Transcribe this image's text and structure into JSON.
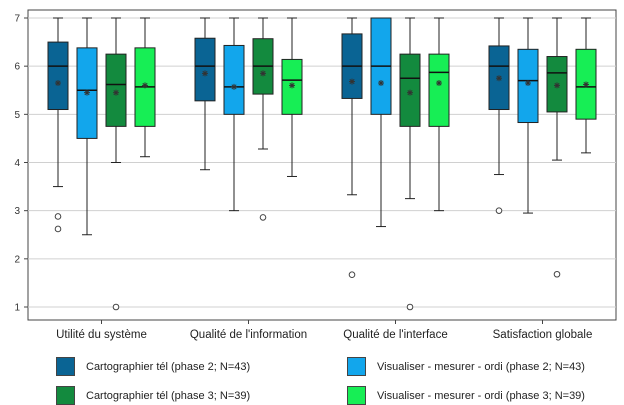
{
  "chart_data": {
    "type": "box",
    "categories": [
      "Utilité du système",
      "Qualité de l'information",
      "Qualité de l'interface",
      "Satisfaction globale"
    ],
    "y_ticks": [
      1,
      2,
      3,
      4,
      5,
      6,
      7
    ],
    "ylim": [
      0.8,
      7.1
    ],
    "grid": true,
    "legend_placement": "bottom",
    "series": [
      {
        "name": "Cartographier tél (phase 2; N=43)",
        "color": "#0a6494",
        "boxes": [
          {
            "min": 3.5,
            "q1": 5.1,
            "median": 6.0,
            "q3": 6.5,
            "max": 7.0,
            "mean": 5.65,
            "outliers": [
              2.88,
              2.62
            ]
          },
          {
            "min": 3.85,
            "q1": 5.28,
            "median": 6.0,
            "q3": 6.58,
            "max": 7.0,
            "mean": 5.85,
            "outliers": []
          },
          {
            "min": 3.33,
            "q1": 5.33,
            "median": 6.0,
            "q3": 6.67,
            "max": 7.0,
            "mean": 5.68,
            "outliers": [
              1.67
            ]
          },
          {
            "min": 3.75,
            "q1": 5.1,
            "median": 6.0,
            "q3": 6.42,
            "max": 7.0,
            "mean": 5.75,
            "outliers": [
              3.0
            ]
          }
        ]
      },
      {
        "name": "Visualiser  - mesurer - ordi (phase 2; N=43)",
        "color": "#12a6ec",
        "boxes": [
          {
            "min": 2.5,
            "q1": 4.5,
            "median": 5.5,
            "q3": 6.38,
            "max": 7.0,
            "mean": 5.45,
            "outliers": []
          },
          {
            "min": 3.0,
            "q1": 5.0,
            "median": 5.57,
            "q3": 6.43,
            "max": 7.0,
            "mean": 5.57,
            "outliers": []
          },
          {
            "min": 2.67,
            "q1": 5.0,
            "median": 6.0,
            "q3": 7.0,
            "max": 7.0,
            "mean": 5.65,
            "outliers": []
          },
          {
            "min": 2.95,
            "q1": 4.83,
            "median": 5.7,
            "q3": 6.35,
            "max": 7.0,
            "mean": 5.65,
            "outliers": []
          }
        ]
      },
      {
        "name": "Cartographier tél (phase 3; N=39)",
        "color": "#138a3e",
        "boxes": [
          {
            "min": 4.0,
            "q1": 4.75,
            "median": 5.62,
            "q3": 6.25,
            "max": 7.0,
            "mean": 5.45,
            "outliers": [
              1.0
            ]
          },
          {
            "min": 4.28,
            "q1": 5.42,
            "median": 6.0,
            "q3": 6.57,
            "max": 7.0,
            "mean": 5.85,
            "outliers": [
              2.86
            ]
          },
          {
            "min": 3.25,
            "q1": 4.75,
            "median": 5.75,
            "q3": 6.25,
            "max": 7.0,
            "mean": 5.45,
            "outliers": [
              1.0
            ]
          },
          {
            "min": 4.05,
            "q1": 5.05,
            "median": 5.86,
            "q3": 6.2,
            "max": 7.0,
            "mean": 5.6,
            "outliers": [
              1.68
            ]
          }
        ]
      },
      {
        "name": "Visualiser - mesurer - ordi (phase 3; N=39)",
        "color": "#17ee55",
        "boxes": [
          {
            "min": 4.12,
            "q1": 4.75,
            "median": 5.57,
            "q3": 6.38,
            "max": 7.0,
            "mean": 5.6,
            "outliers": []
          },
          {
            "min": 3.71,
            "q1": 5.0,
            "median": 5.71,
            "q3": 6.14,
            "max": 7.0,
            "mean": 5.6,
            "outliers": []
          },
          {
            "min": 3.0,
            "q1": 4.75,
            "median": 5.87,
            "q3": 6.25,
            "max": 7.0,
            "mean": 5.65,
            "outliers": []
          },
          {
            "min": 4.2,
            "q1": 4.9,
            "median": 5.57,
            "q3": 6.35,
            "max": 7.0,
            "mean": 5.62,
            "outliers": []
          }
        ]
      }
    ]
  }
}
